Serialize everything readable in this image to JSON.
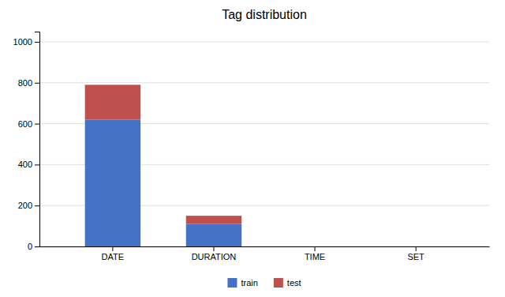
{
  "chart_data": {
    "type": "bar",
    "title": "Tag distribution",
    "stacked": true,
    "categories": [
      "DATE",
      "DURATION",
      "TIME",
      "SET"
    ],
    "series": [
      {
        "name": "train",
        "color": "#4472c4",
        "values": [
          620,
          110,
          0,
          0
        ]
      },
      {
        "name": "test",
        "color": "#c0504d",
        "values": [
          170,
          40,
          0,
          0
        ]
      }
    ],
    "ylim": [
      0,
      1050
    ],
    "yticks": [
      0,
      200,
      400,
      600,
      800,
      1000
    ],
    "grid": true,
    "legend": "bottom"
  }
}
